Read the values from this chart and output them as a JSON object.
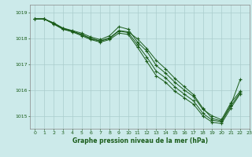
{
  "bg_color": "#cceaea",
  "grid_color": "#aacccc",
  "line_color": "#1a5c1a",
  "xlabel": "Graphe pression niveau de la mer (hPa)",
  "xlim": [
    -0.5,
    23
  ],
  "ylim": [
    1014.5,
    1019.3
  ],
  "yticks": [
    1015,
    1016,
    1017,
    1018,
    1019
  ],
  "xticks": [
    0,
    1,
    2,
    3,
    4,
    5,
    6,
    7,
    8,
    9,
    10,
    11,
    12,
    13,
    14,
    15,
    16,
    17,
    18,
    19,
    20,
    21,
    22,
    23
  ],
  "series1": [
    1018.75,
    1018.75,
    1018.6,
    1018.4,
    1018.3,
    1018.2,
    1018.05,
    1017.95,
    1018.1,
    1018.45,
    1018.35,
    1017.85,
    1017.5,
    1016.95,
    1016.65,
    1016.3,
    1016.0,
    1015.75,
    1015.25,
    1015.0,
    1014.85,
    1015.5,
    1015.95,
    null
  ],
  "series2": [
    1018.75,
    1018.75,
    1018.55,
    1018.35,
    1018.25,
    1018.1,
    1017.95,
    1017.85,
    1017.95,
    1018.2,
    1018.15,
    1017.65,
    1017.1,
    1016.55,
    1016.3,
    1015.95,
    1015.7,
    1015.45,
    1015.0,
    1014.75,
    1014.7,
    1015.3,
    1015.85,
    null
  ],
  "series3": [
    1018.75,
    1018.75,
    1018.57,
    1018.37,
    1018.27,
    1018.14,
    1017.98,
    1017.89,
    1017.99,
    1018.28,
    1018.22,
    1017.75,
    1017.27,
    1016.73,
    1016.47,
    1016.12,
    1015.84,
    1015.58,
    1015.1,
    1014.83,
    1014.77,
    1015.38,
    1015.9,
    null
  ],
  "series4": [
    1018.75,
    1018.75,
    1018.58,
    1018.38,
    1018.28,
    1018.15,
    1018.0,
    1017.9,
    1018.02,
    1018.3,
    1018.25,
    1017.98,
    1017.6,
    1017.15,
    1016.82,
    1016.45,
    1016.13,
    1015.82,
    1015.3,
    1014.9,
    1014.8,
    1015.42,
    1016.4,
    null
  ]
}
